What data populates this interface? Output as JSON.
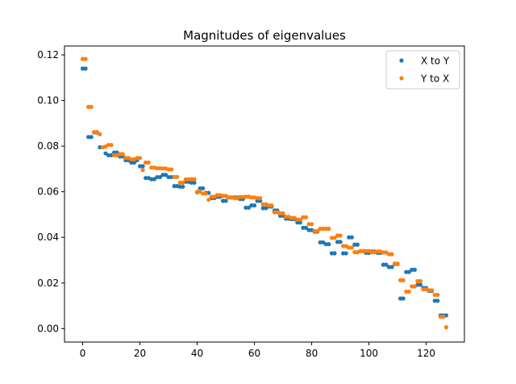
{
  "chart_data": {
    "type": "scatter",
    "title": "Magnitudes of eigenvalues",
    "xlabel": "",
    "ylabel": "",
    "xlim": [
      -6.35,
      133.35
    ],
    "ylim": [
      -0.0059,
      0.1239
    ],
    "xticks": [
      0,
      20,
      40,
      60,
      80,
      100,
      120
    ],
    "yticks": [
      0.0,
      0.02,
      0.04,
      0.06,
      0.08,
      0.1,
      0.12
    ],
    "ytick_labels": [
      "0.00",
      "0.02",
      "0.04",
      "0.06",
      "0.08",
      "0.10",
      "0.12"
    ],
    "grid": false,
    "legend_position": "top-right",
    "series": [
      {
        "name": "X to Y",
        "color": "#1f77b4",
        "x": [
          0,
          1,
          2,
          3,
          4,
          5,
          6,
          7,
          8,
          9,
          10,
          11,
          12,
          13,
          14,
          15,
          16,
          17,
          18,
          19,
          20,
          21,
          22,
          23,
          24,
          25,
          26,
          27,
          28,
          29,
          30,
          31,
          32,
          33,
          34,
          35,
          36,
          37,
          38,
          39,
          40,
          41,
          42,
          43,
          44,
          45,
          46,
          47,
          48,
          49,
          50,
          51,
          52,
          53,
          54,
          55,
          56,
          57,
          58,
          59,
          60,
          61,
          62,
          63,
          64,
          65,
          66,
          67,
          68,
          69,
          70,
          71,
          72,
          73,
          74,
          75,
          76,
          77,
          78,
          79,
          80,
          81,
          82,
          83,
          84,
          85,
          86,
          87,
          88,
          89,
          90,
          91,
          92,
          93,
          94,
          95,
          96,
          97,
          98,
          99,
          100,
          101,
          102,
          103,
          104,
          105,
          106,
          107,
          108,
          109,
          110,
          111,
          112,
          113,
          114,
          115,
          116,
          117,
          118,
          119,
          120,
          121,
          122,
          123,
          124,
          125,
          126,
          127
        ],
        "y": [
          0.114,
          0.114,
          0.084,
          0.084,
          0.086,
          0.086,
          0.0795,
          0.0795,
          0.0768,
          0.076,
          0.076,
          0.0772,
          0.0772,
          0.0755,
          0.0755,
          0.0738,
          0.0738,
          0.0728,
          0.0728,
          0.0738,
          0.0712,
          0.0712,
          0.066,
          0.066,
          0.0655,
          0.0655,
          0.0664,
          0.0664,
          0.0674,
          0.0674,
          0.0664,
          0.0664,
          0.0625,
          0.0625,
          0.0622,
          0.0622,
          0.0644,
          0.0644,
          0.064,
          0.064,
          0.0598,
          0.0615,
          0.0615,
          0.0595,
          0.0595,
          0.0572,
          0.0572,
          0.0578,
          0.0578,
          0.056,
          0.056,
          0.0575,
          0.0575,
          0.0575,
          0.0575,
          0.0568,
          0.0568,
          0.053,
          0.053,
          0.054,
          0.054,
          0.056,
          0.056,
          0.0528,
          0.0528,
          0.0535,
          0.0535,
          0.0518,
          0.0518,
          0.0495,
          0.0495,
          0.0482,
          0.0482,
          0.048,
          0.048,
          0.0465,
          0.0465,
          0.0442,
          0.0442,
          0.0432,
          0.0432,
          0.0425,
          0.0425,
          0.0378,
          0.0378,
          0.037,
          0.037,
          0.033,
          0.033,
          0.038,
          0.038,
          0.033,
          0.033,
          0.04,
          0.04,
          0.0368,
          0.0368,
          0.034,
          0.034,
          0.0332,
          0.0332,
          0.0338,
          0.0338,
          0.0332,
          0.0332,
          0.028,
          0.028,
          0.027,
          0.027,
          0.0283,
          0.0283,
          0.0132,
          0.0132,
          0.0248,
          0.0248,
          0.0258,
          0.0258,
          0.0192,
          0.0192,
          0.0178,
          0.0178,
          0.0165,
          0.0165,
          0.0122,
          0.0122,
          0.0058,
          0.0058,
          0.0058
        ]
      },
      {
        "name": "Y to X",
        "color": "#ff7f0e",
        "x": [
          0,
          1,
          2,
          3,
          4,
          5,
          6,
          7,
          8,
          9,
          10,
          11,
          12,
          13,
          14,
          15,
          16,
          17,
          18,
          19,
          20,
          21,
          22,
          23,
          24,
          25,
          26,
          27,
          28,
          29,
          30,
          31,
          32,
          33,
          34,
          35,
          36,
          37,
          38,
          39,
          40,
          41,
          42,
          43,
          44,
          45,
          46,
          47,
          48,
          49,
          50,
          51,
          52,
          53,
          54,
          55,
          56,
          57,
          58,
          59,
          60,
          61,
          62,
          63,
          64,
          65,
          66,
          67,
          68,
          69,
          70,
          71,
          72,
          73,
          74,
          75,
          76,
          77,
          78,
          79,
          80,
          81,
          82,
          83,
          84,
          85,
          86,
          87,
          88,
          89,
          90,
          91,
          92,
          93,
          94,
          95,
          96,
          97,
          98,
          99,
          100,
          101,
          102,
          103,
          104,
          105,
          106,
          107,
          108,
          109,
          110,
          111,
          112,
          113,
          114,
          115,
          116,
          117,
          118,
          119,
          120,
          121,
          122,
          123,
          124,
          125,
          126,
          127
        ],
        "y": [
          0.1182,
          0.1182,
          0.0972,
          0.0972,
          0.0862,
          0.0862,
          0.0852,
          0.0795,
          0.0798,
          0.0805,
          0.0805,
          0.076,
          0.076,
          0.0765,
          0.0765,
          0.0748,
          0.0748,
          0.0742,
          0.0742,
          0.0748,
          0.0748,
          0.0695,
          0.0728,
          0.0728,
          0.0706,
          0.0706,
          0.0703,
          0.0703,
          0.0702,
          0.0702,
          0.0698,
          0.0698,
          0.0665,
          0.0665,
          0.064,
          0.064,
          0.0654,
          0.0654,
          0.0655,
          0.0655,
          0.06,
          0.06,
          0.0592,
          0.0592,
          0.0565,
          0.0578,
          0.0578,
          0.0585,
          0.0585,
          0.0582,
          0.0582,
          0.0575,
          0.0575,
          0.0572,
          0.0572,
          0.0577,
          0.0577,
          0.0578,
          0.0578,
          0.0575,
          0.0575,
          0.0572,
          0.0572,
          0.0545,
          0.0545,
          0.054,
          0.054,
          0.051,
          0.051,
          0.0505,
          0.0505,
          0.049,
          0.049,
          0.0485,
          0.0485,
          0.0478,
          0.0478,
          0.0488,
          0.0488,
          0.0458,
          0.0458,
          0.0428,
          0.0428,
          0.0438,
          0.0438,
          0.0438,
          0.0438,
          0.0398,
          0.0398,
          0.0408,
          0.0408,
          0.0362,
          0.0362,
          0.0355,
          0.0355,
          0.0335,
          0.0335,
          0.034,
          0.034,
          0.034,
          0.034,
          0.0335,
          0.0335,
          0.0338,
          0.0338,
          0.0334,
          0.0334,
          0.0326,
          0.0326,
          0.0285,
          0.0285,
          0.0212,
          0.0212,
          0.0162,
          0.0162,
          0.0185,
          0.0185,
          0.0208,
          0.0208,
          0.0172,
          0.0172,
          0.0168,
          0.0168,
          0.0148,
          0.0148,
          0.0052,
          0.0052,
          0.0006
        ]
      }
    ]
  }
}
